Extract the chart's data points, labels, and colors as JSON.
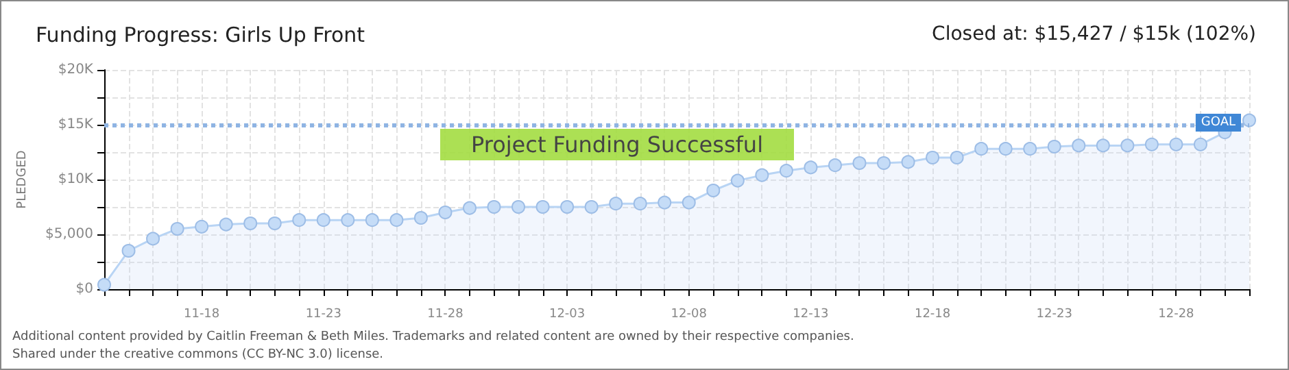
{
  "chart_data": {
    "type": "area",
    "title": "Funding Progress: Girls Up Front",
    "subtitle": "Closed at: $15,427 / $15k (102%)",
    "ylabel": "PLEDGED",
    "categories": [
      null,
      null,
      null,
      null,
      "11-18",
      null,
      null,
      null,
      null,
      "11-23",
      null,
      null,
      null,
      null,
      "11-28",
      null,
      null,
      null,
      null,
      "12-03",
      null,
      null,
      null,
      null,
      "12-08",
      null,
      null,
      null,
      null,
      "12-13",
      null,
      null,
      null,
      null,
      "12-18",
      null,
      null,
      null,
      null,
      "12-23",
      null,
      null,
      null,
      null,
      "12-28",
      null,
      null,
      null
    ],
    "series": [
      {
        "color": "#b8d4f4",
        "values": [
          400,
          3500,
          4600,
          5500,
          5700,
          5900,
          6000,
          6000,
          6300,
          6300,
          6300,
          6300,
          6300,
          6500,
          7000,
          7400,
          7500,
          7500,
          7500,
          7500,
          7500,
          7800,
          7800,
          7900,
          7900,
          9000,
          9900,
          10400,
          10800,
          11100,
          11300,
          11500,
          11500,
          11600,
          12000,
          12000,
          12800,
          12800,
          12800,
          13000,
          13100,
          13100,
          13100,
          13200,
          13200,
          13200,
          14300,
          15400
        ]
      }
    ],
    "ylim": [
      0,
      20000
    ],
    "yticks": [
      {
        "value": 0,
        "label": "$0"
      },
      {
        "value": 2500,
        "label": null
      },
      {
        "value": 5000,
        "label": "$5,000"
      },
      {
        "value": 7500,
        "label": null
      },
      {
        "value": 10000,
        "label": "$10K"
      },
      {
        "value": 12500,
        "label": null
      },
      {
        "value": 15000,
        "label": "$15K"
      },
      {
        "value": 17500,
        "label": null
      },
      {
        "value": 20000,
        "label": "$20K"
      }
    ],
    "ref_lines": [
      {
        "axis": "y",
        "value": 15000,
        "label": "GOAL",
        "color": "#8fb4e3",
        "line_style": "dotted"
      }
    ],
    "annotations": [
      "Project Funding Successful",
      "Additional content provided by Caitlin Freeman & Beth Miles. Trademarks and related content are owned by their respective companies.",
      "Shared under the creative commons (CC BY-NC 3.0) license."
    ],
    "grid": true,
    "marker": "circle",
    "line_style": "solid"
  }
}
